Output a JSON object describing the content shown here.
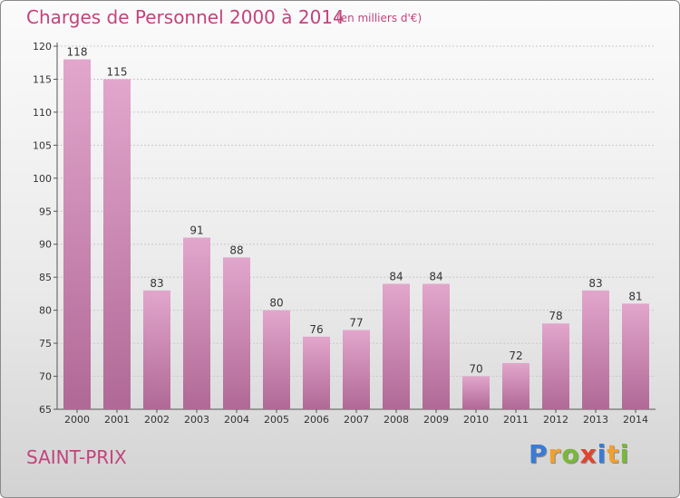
{
  "header": {
    "title": "Charges de Personnel 2000 à 2014",
    "subtitle": "(en milliers d'€)"
  },
  "footer": {
    "commune": "SAINT-PRIX",
    "logo_letters": [
      {
        "char": "P",
        "color": "#3a7bd5"
      },
      {
        "char": "r",
        "color": "#f0a030"
      },
      {
        "char": "o",
        "color": "#7ab83a"
      },
      {
        "char": "x",
        "color": "#e0452e"
      },
      {
        "char": "i",
        "color": "#3a7bd5"
      },
      {
        "char": "t",
        "color": "#f0a030"
      },
      {
        "char": "i",
        "color": "#7ab83a"
      }
    ]
  },
  "colors": {
    "title": "#c2447c",
    "bar_top": "#e2a6cc",
    "bar_bottom": "#b06996",
    "grid": "#c8c8c8"
  },
  "chart_data": {
    "type": "bar",
    "categories": [
      "2000",
      "2001",
      "2002",
      "2003",
      "2004",
      "2005",
      "2006",
      "2007",
      "2008",
      "2009",
      "2010",
      "2011",
      "2012",
      "2013",
      "2014"
    ],
    "values": [
      118,
      115,
      83,
      91,
      88,
      80,
      76,
      77,
      84,
      84,
      70,
      72,
      78,
      83,
      81
    ],
    "ylim": [
      65,
      120
    ],
    "yticks": [
      65,
      70,
      75,
      80,
      85,
      90,
      95,
      100,
      105,
      110,
      115,
      120
    ],
    "grid": true,
    "data_labels": true
  }
}
